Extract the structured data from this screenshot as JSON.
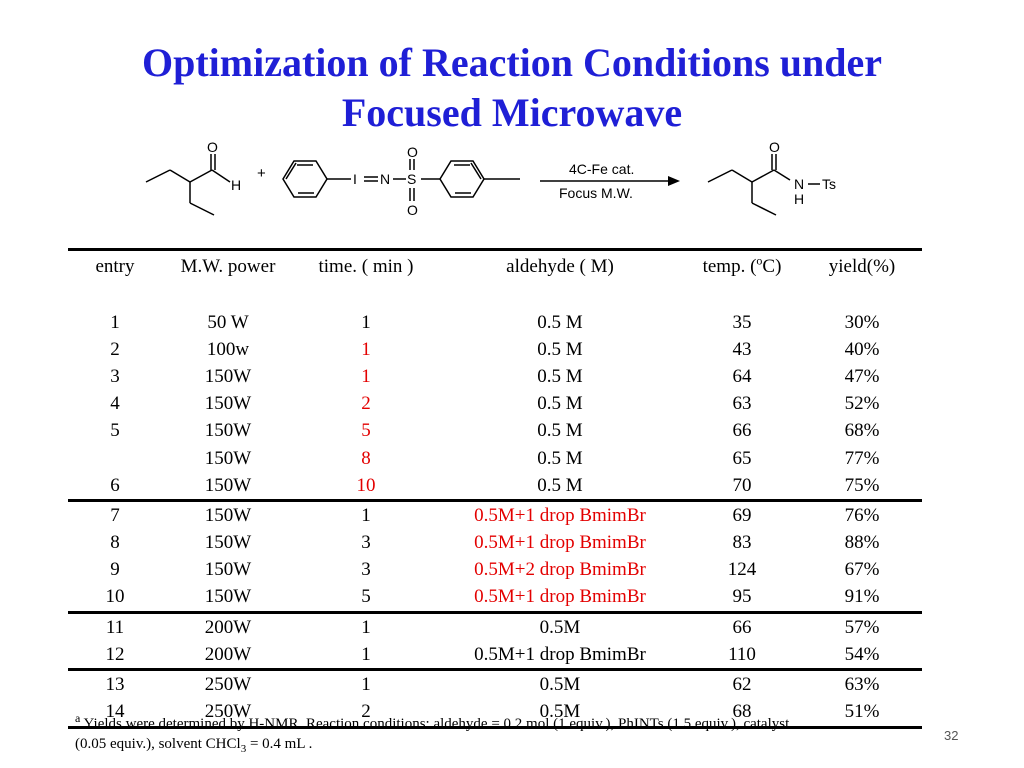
{
  "title": {
    "line1": "Optimization of Reaction Conditions under",
    "line2": "Focused Microwave"
  },
  "scheme": {
    "atom_O": "O",
    "atom_H": "H",
    "atom_I": "I",
    "atom_N": "N",
    "atom_S": "S",
    "atom_Ts": "Ts",
    "plus": "+",
    "arrow_top": "4C-Fe cat.",
    "arrow_bottom": "Focus M.W."
  },
  "table": {
    "headers": {
      "entry": "entry",
      "power": "M.W. power",
      "time": "time. ( min )",
      "aldehyde": "aldehyde ( M)",
      "temp_prefix": "temp. (",
      "temp_sup": "o",
      "temp_suffix": "C)",
      "yield": "yield(%)"
    },
    "rows": [
      {
        "entry": "1",
        "power": "50 W",
        "time": "1",
        "aldehyde": "0.5 M",
        "temp": "35",
        "yield": "30%"
      },
      {
        "entry": "2",
        "power": "100w",
        "time": "1",
        "aldehyde": "0.5 M",
        "temp": "43",
        "yield": "40%"
      },
      {
        "entry": "3",
        "power": "150W",
        "time": "1",
        "aldehyde": "0.5 M",
        "temp": "64",
        "yield": "47%"
      },
      {
        "entry": "4",
        "power": "150W",
        "time": "2",
        "aldehyde": "0.5 M",
        "temp": "63",
        "yield": "52%"
      },
      {
        "entry": "5",
        "power": "150W",
        "time": "5",
        "aldehyde": "0.5 M",
        "temp": "66",
        "yield": "68%"
      },
      {
        "entry": "",
        "power": "150W",
        "time": "8",
        "aldehyde": "0.5 M",
        "temp": "65",
        "yield": "77%"
      },
      {
        "entry": "6",
        "power": "150W",
        "time": "10",
        "aldehyde": "0.5 M",
        "temp": "70",
        "yield": "75%"
      },
      {
        "entry": "7",
        "power": "150W",
        "time": "1",
        "aldehyde": "0.5M+1 drop BmimBr",
        "temp": "69",
        "yield": "76%"
      },
      {
        "entry": "8",
        "power": "150W",
        "time": "3",
        "aldehyde": "0.5M+1 drop BmimBr",
        "temp": "83",
        "yield": "88%"
      },
      {
        "entry": "9",
        "power": "150W",
        "time": "3",
        "aldehyde": "0.5M+2 drop BmimBr",
        "temp": "124",
        "yield": "67%"
      },
      {
        "entry": "10",
        "power": "150W",
        "time": "5",
        "aldehyde": "0.5M+1 drop BmimBr",
        "temp": "95",
        "yield": "91%"
      },
      {
        "entry": "11",
        "power": "200W",
        "time": "1",
        "aldehyde": "0.5M",
        "temp": "66",
        "yield": "57%"
      },
      {
        "entry": "12",
        "power": "200W",
        "time": "1",
        "aldehyde": "0.5M+1 drop BmimBr",
        "temp": "110",
        "yield": "54%"
      },
      {
        "entry": "13",
        "power": "250W",
        "time": "1",
        "aldehyde": "0.5M",
        "temp": "62",
        "yield": "63%"
      },
      {
        "entry": "14",
        "power": "250W",
        "time": "2",
        "aldehyde": "0.5M",
        "temp": "68",
        "yield": "51%"
      }
    ]
  },
  "footnote": {
    "marker": "a",
    "line1": " Yields were determined by H-NMR. Reaction conditions: aldehyde = 0.2 mol (1 equiv.), PhINTs (1.5 equiv.), catalyst",
    "line2_pre": "(0.05 equiv.), solvent CHCl",
    "line2_sub": "3",
    "line2_post": " = 0.4 mL  ."
  },
  "page_number": "32",
  "colors": {
    "title": "#1f1fd6",
    "highlight_red": "#e30000"
  }
}
